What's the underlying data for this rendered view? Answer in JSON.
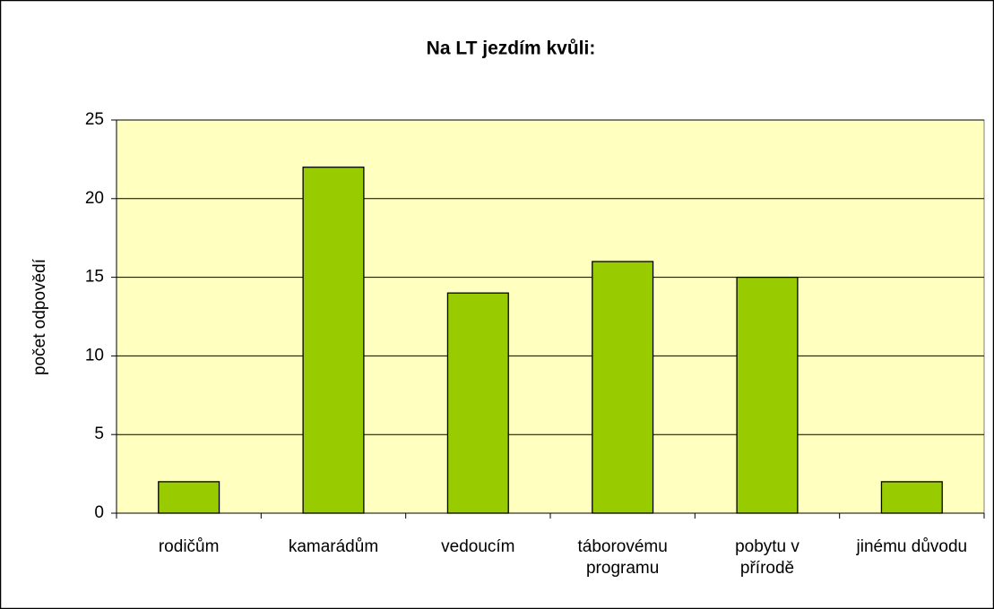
{
  "chart_data": {
    "type": "bar",
    "title": "Na LT jezdím kvůli:",
    "y_label": "počet odpovědí",
    "categories": [
      "rodičům",
      "kamarádům",
      "vedoucím",
      "táborovému programu",
      "pobytu v přírodě",
      "jinému důvodu"
    ],
    "values": [
      2,
      22,
      14,
      16,
      15,
      2
    ],
    "color": "#99cc00",
    "ylim": [
      0,
      25
    ],
    "yticks": [
      0,
      5,
      10,
      15,
      20,
      25
    ],
    "grid": true
  }
}
